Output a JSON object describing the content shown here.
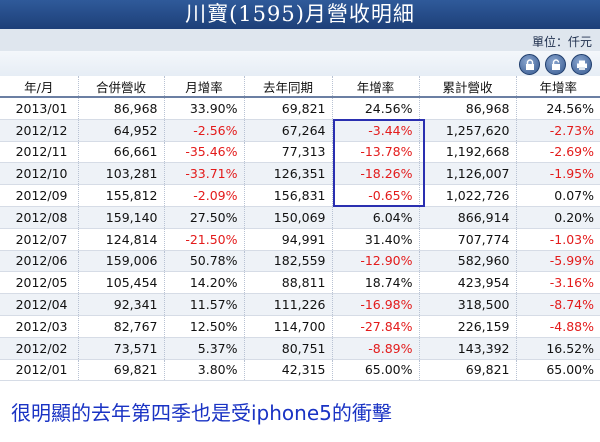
{
  "header": {
    "title": "川寶(1595)月營收明細",
    "unit_label": "單位：仟元"
  },
  "toolbar": {
    "icons": [
      "lock-icon",
      "unlock-icon",
      "print-icon"
    ]
  },
  "table": {
    "columns": [
      "年/月",
      "合併營收",
      "月增率",
      "去年同期",
      "年增率",
      "累計營收",
      "年增率"
    ],
    "rows": [
      [
        "2013/01",
        "86,968",
        "33.90%",
        "69,821",
        "24.56%",
        "86,968",
        "24.56%"
      ],
      [
        "2012/12",
        "64,952",
        "-2.56%",
        "67,264",
        "-3.44%",
        "1,257,620",
        "-2.73%"
      ],
      [
        "2012/11",
        "66,661",
        "-35.46%",
        "77,313",
        "-13.78%",
        "1,192,668",
        "-2.69%"
      ],
      [
        "2012/10",
        "103,281",
        "-33.71%",
        "126,351",
        "-18.26%",
        "1,126,007",
        "-1.95%"
      ],
      [
        "2012/09",
        "155,812",
        "-2.09%",
        "156,831",
        "-0.65%",
        "1,022,726",
        "0.07%"
      ],
      [
        "2012/08",
        "159,140",
        "27.50%",
        "150,069",
        "6.04%",
        "866,914",
        "0.20%"
      ],
      [
        "2012/07",
        "124,814",
        "-21.50%",
        "94,991",
        "31.40%",
        "707,774",
        "-1.03%"
      ],
      [
        "2012/06",
        "159,006",
        "50.78%",
        "182,559",
        "-12.90%",
        "582,960",
        "-5.99%"
      ],
      [
        "2012/05",
        "105,454",
        "14.20%",
        "88,811",
        "18.74%",
        "423,954",
        "-3.16%"
      ],
      [
        "2012/04",
        "92,341",
        "11.57%",
        "111,226",
        "-16.98%",
        "318,500",
        "-8.74%"
      ],
      [
        "2012/03",
        "82,767",
        "12.50%",
        "114,700",
        "-27.84%",
        "226,159",
        "-4.88%"
      ],
      [
        "2012/02",
        "73,571",
        "5.37%",
        "80,751",
        "-8.89%",
        "143,392",
        "16.52%"
      ],
      [
        "2012/01",
        "69,821",
        "3.80%",
        "42,315",
        "65.00%",
        "69,821",
        "65.00%"
      ]
    ]
  },
  "annotation": {
    "text": "很明顯的去年第四季也是受iphone5的衝擊"
  },
  "colors": {
    "title_bg": "#2f5a9a",
    "negative": "#e31b1b",
    "annotation": "#1a33c4",
    "highlight_box": "#2a2fb0"
  }
}
